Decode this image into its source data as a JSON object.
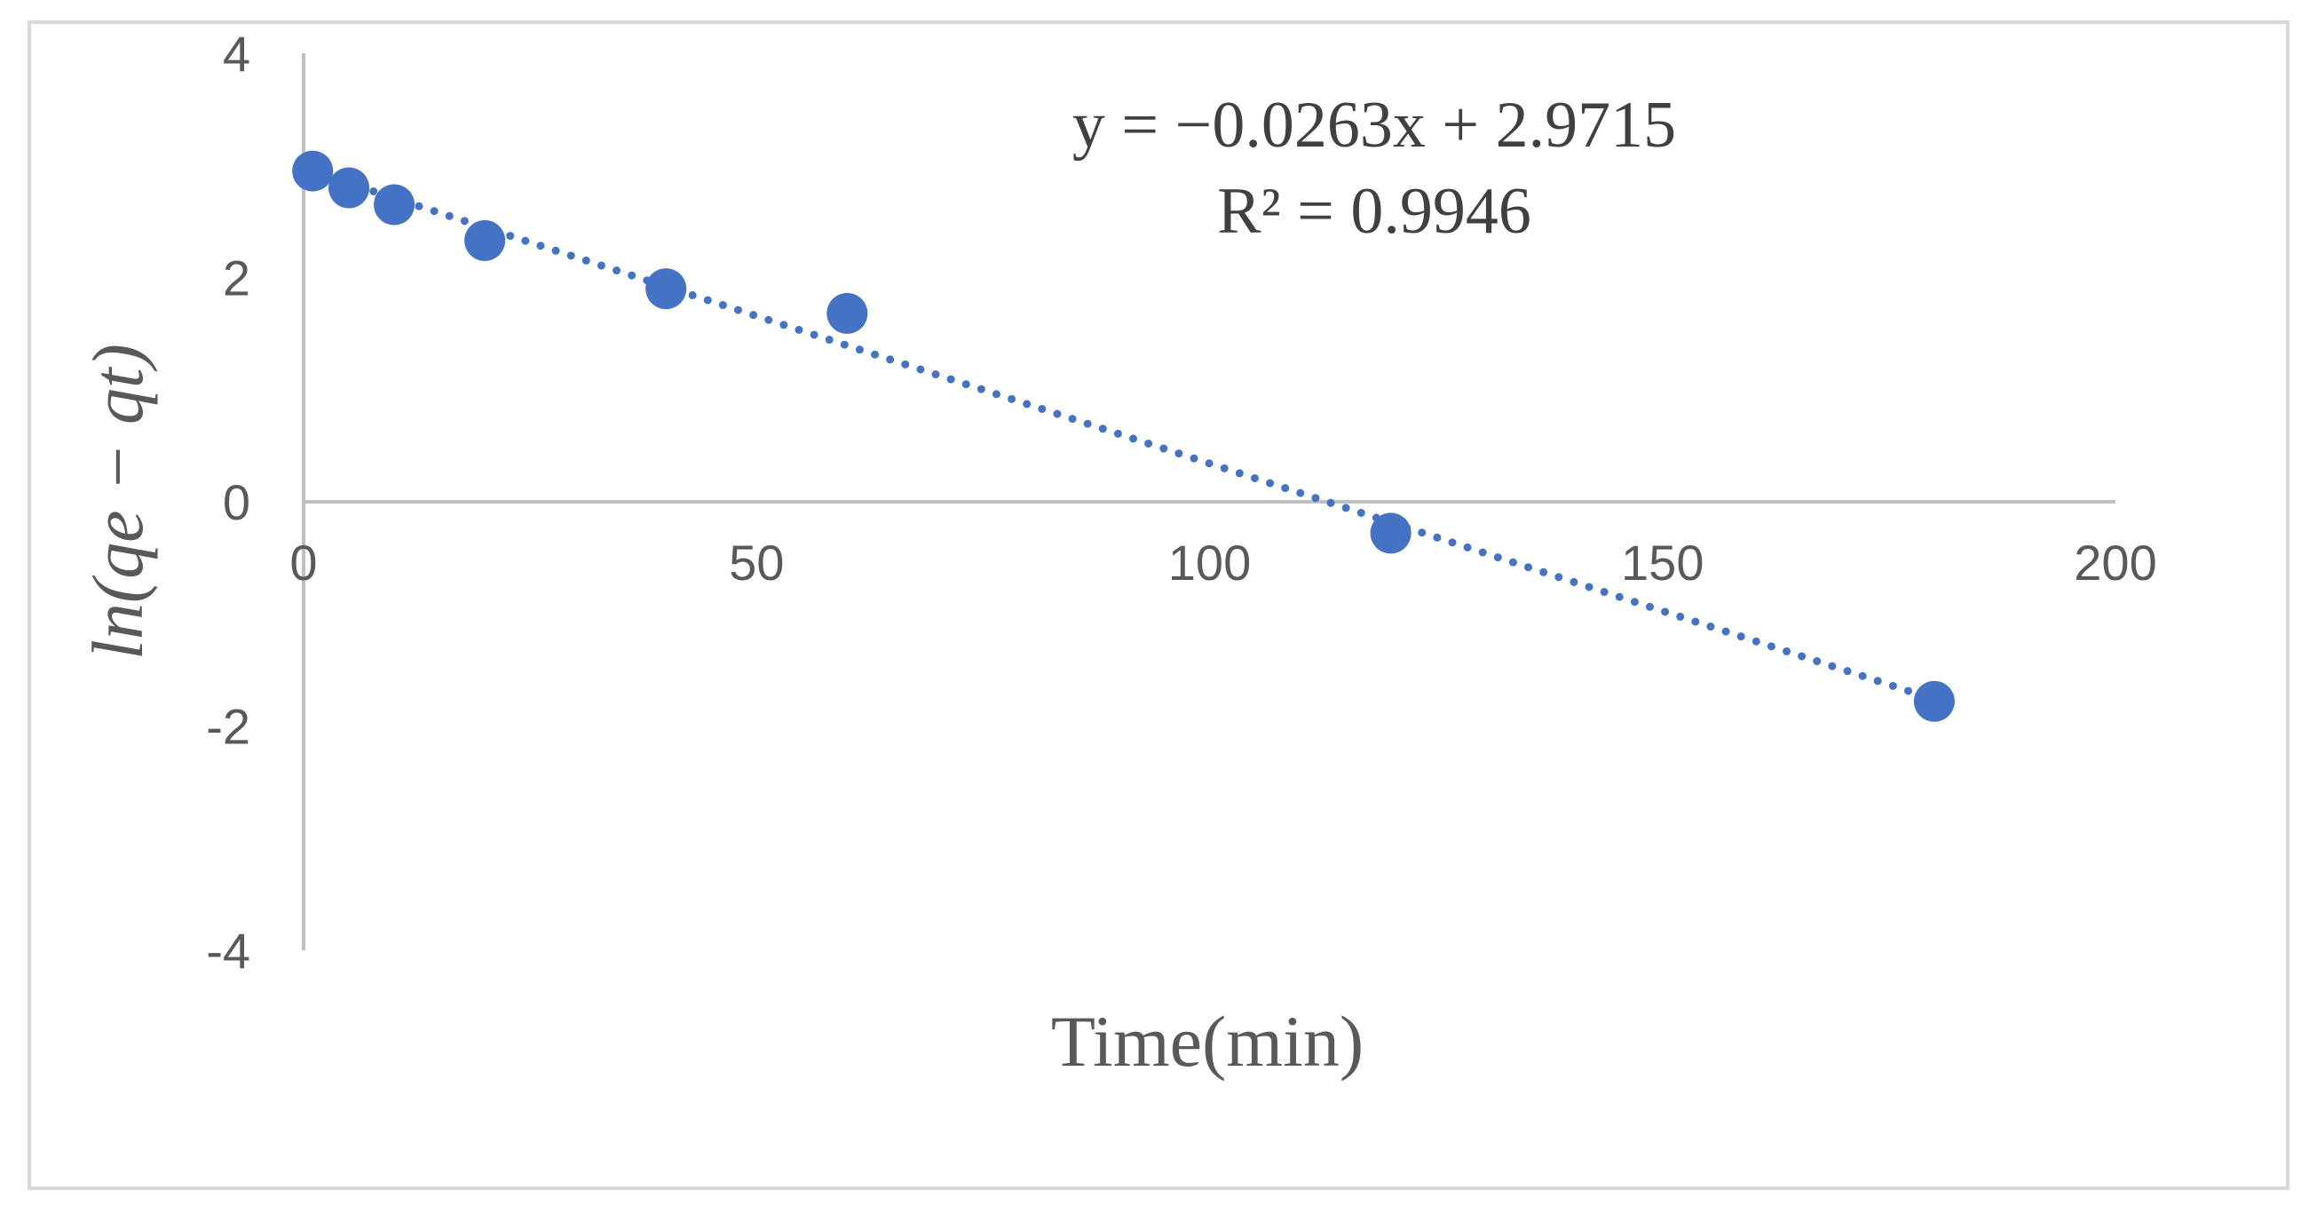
{
  "chart_data": {
    "type": "scatter",
    "title": "",
    "xlabel": "Time(min)",
    "ylabel": "ln(qe − qt)",
    "xlim": [
      0,
      200
    ],
    "ylim": [
      -4,
      4
    ],
    "x_ticks": [
      "0",
      "50",
      "100",
      "150",
      "200"
    ],
    "y_ticks": [
      "4",
      "2",
      "0",
      "-2",
      "-4"
    ],
    "grid": false,
    "legend": "none",
    "series": [
      {
        "x": [
          1,
          5,
          10,
          20,
          40,
          60,
          120,
          180
        ],
        "y": [
          2.95,
          2.8,
          2.65,
          2.33,
          1.9,
          1.68,
          -0.28,
          -1.78
        ],
        "color": "#4472c4"
      }
    ],
    "trendline": {
      "type": "linear",
      "style": "dotted",
      "slope": -0.0263,
      "intercept": 2.9715,
      "x_range": [
        1,
        180
      ],
      "color": "#4472c4",
      "equation_label": "y = −0.0263x + 2.9715",
      "r2_label": "R² = 0.9946"
    },
    "axis_color": "#bfbfbf"
  }
}
